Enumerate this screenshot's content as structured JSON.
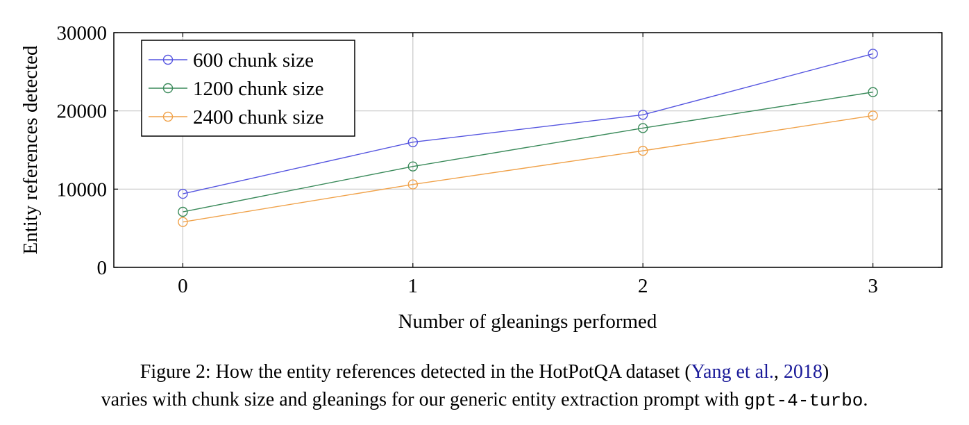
{
  "chart_data": {
    "type": "line",
    "x": [
      0,
      1,
      2,
      3
    ],
    "series": [
      {
        "name": "600 chunk size",
        "values": [
          9400,
          16000,
          19500,
          27300
        ],
        "color": "#5555e0"
      },
      {
        "name": "1200 chunk size",
        "values": [
          7100,
          12900,
          17800,
          22400
        ],
        "color": "#3a8a5a"
      },
      {
        "name": "2400 chunk size",
        "values": [
          5800,
          10600,
          14900,
          19400
        ],
        "color": "#f0a24a"
      }
    ],
    "xlabel": "Number of gleanings performed",
    "ylabel": "Entity references detected",
    "xlim": [
      -0.3,
      3.3
    ],
    "ylim": [
      0,
      30000
    ],
    "x_ticks": [
      0,
      1,
      2,
      3
    ],
    "y_ticks": [
      0,
      10000,
      20000,
      30000
    ],
    "x_tick_labels": [
      "0",
      "1",
      "2",
      "3"
    ],
    "y_tick_labels": [
      "0",
      "10000",
      "20000",
      "30000"
    ],
    "grid": true,
    "legend_position": "top-left"
  },
  "caption": {
    "prefix": "Figure 2: How the entity references detected in the HotPotQA dataset (",
    "cite_author": "Yang et al.",
    "cite_sep": ", ",
    "cite_year": "2018",
    "paren_close": ")",
    "line2": "varies with chunk size and gleanings for our generic entity extraction prompt with ",
    "model": "gpt-4-turbo",
    "end": "."
  }
}
